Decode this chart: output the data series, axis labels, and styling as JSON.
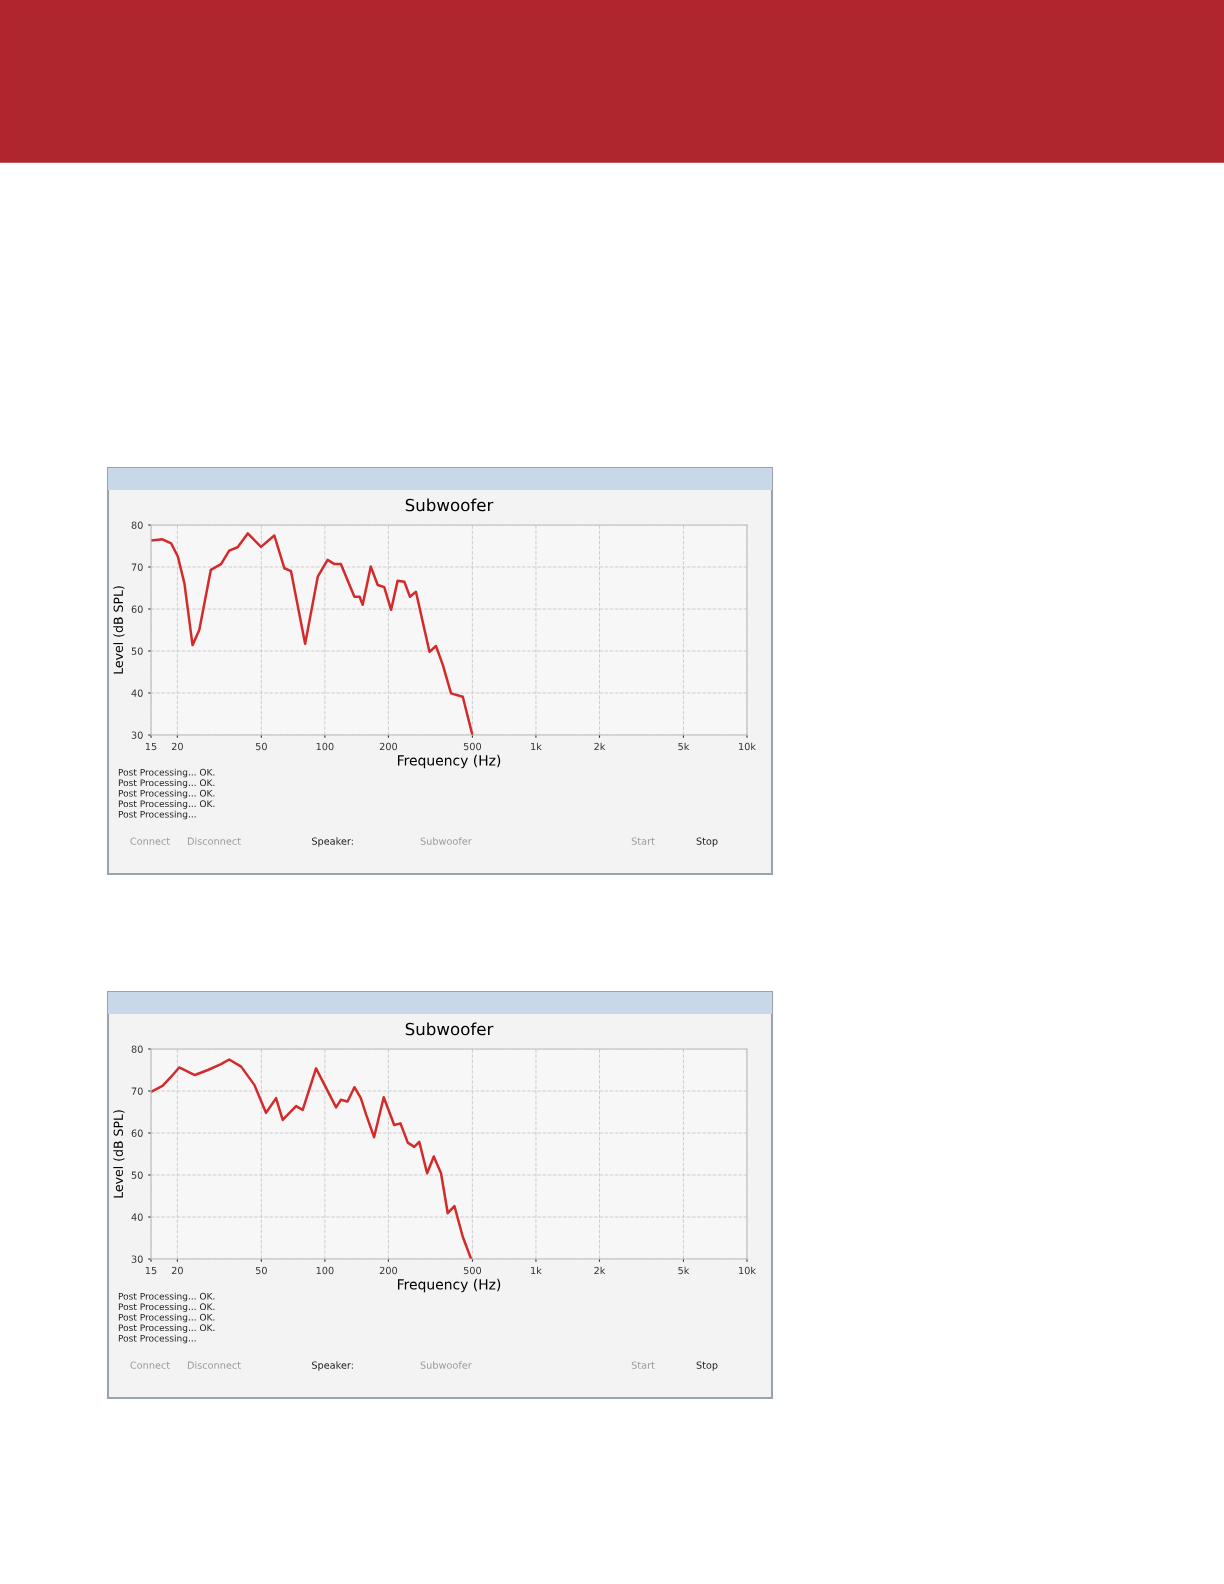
{
  "chart_data": [
    {
      "type": "line",
      "title": "Subwoofer",
      "xlabel": "Frequency (Hz)",
      "ylabel": "Level (dB SPL)",
      "log": "x",
      "grid": true,
      "line_style": "solid",
      "xlim": [
        15,
        10000
      ],
      "xticks": [
        15,
        20,
        50,
        100,
        200,
        500,
        {
          "value": 1000,
          "label": "1k"
        },
        {
          "value": 2000,
          "label": "2k"
        },
        {
          "value": 5000,
          "label": "5k"
        },
        {
          "value": 10000,
          "label": "10k"
        }
      ],
      "ylim": [
        30,
        80
      ],
      "yticks": [
        30,
        40,
        50,
        60,
        70,
        80
      ],
      "series": [
        {
          "color": "#d42a2a",
          "x": [
            15,
            17,
            18.7,
            20.1,
            21.6,
            23.6,
            25.4,
            28.8,
            32.2,
            35.2,
            38.6,
            43.1,
            49.8,
            57.6,
            64.3,
            69.1,
            80.6,
            92.5,
            103,
            111,
            119,
            138,
            146,
            151,
            165,
            178,
            191,
            206,
            221,
            238,
            253,
            270,
            313,
            336,
            362,
            396,
            450,
            500
          ],
          "values": [
            76.3,
            76.6,
            75.6,
            72.5,
            66.1,
            51.4,
            55,
            69.3,
            70.7,
            73.9,
            74.7,
            78,
            74.8,
            77.5,
            69.7,
            69,
            51.7,
            67.7,
            71.7,
            70.7,
            70.7,
            62.9,
            62.9,
            61,
            70.1,
            65.7,
            65.2,
            59.8,
            66.7,
            66.5,
            62.9,
            64.1,
            49.8,
            51.2,
            46.7,
            39.9,
            39.1,
            30
          ]
        }
      ],
      "annotations": [
        "Post Processing... OK.",
        "Post Processing... OK.",
        "Post Processing... OK.",
        "Post Processing... OK.",
        "Post Processing...",
        "Connect",
        "Disconnect",
        "Speaker:",
        "Subwoofer",
        "Start",
        "Stop"
      ]
    },
    {
      "type": "line",
      "title": "Subwoofer",
      "xlabel": "Frequency (Hz)",
      "ylabel": "Level (dB SPL)",
      "log": "x",
      "grid": true,
      "line_style": "solid",
      "xlim": [
        15,
        10000
      ],
      "xticks": [
        15,
        20,
        50,
        100,
        200,
        500,
        {
          "value": 1000,
          "label": "1k"
        },
        {
          "value": 2000,
          "label": "2k"
        },
        {
          "value": 5000,
          "label": "5k"
        },
        {
          "value": 10000,
          "label": "10k"
        }
      ],
      "ylim": [
        30,
        80
      ],
      "yticks": [
        30,
        40,
        50,
        60,
        70,
        80
      ],
      "series": [
        {
          "color": "#d42a2a",
          "x": [
            15,
            17,
            18.7,
            20.4,
            24.2,
            27.9,
            32.2,
            35.2,
            40.1,
            46.4,
            52.6,
            58.7,
            63.1,
            73,
            78.5,
            90.8,
            113,
            119,
            128,
            138,
            148,
            157,
            171,
            190,
            213,
            228,
            247,
            265,
            280,
            305,
            328,
            355,
            382,
            411,
            450,
            493
          ],
          "values": [
            69.8,
            71.2,
            73.4,
            75.6,
            73.8,
            75,
            76.4,
            77.5,
            75.8,
            71.4,
            64.8,
            68.3,
            63.1,
            66.4,
            65.5,
            75.4,
            66.1,
            67.9,
            67.5,
            70.9,
            68.3,
            64.3,
            59,
            68.5,
            61.9,
            62.3,
            57.7,
            56.7,
            57.9,
            50.4,
            54.4,
            50.4,
            40.9,
            42.6,
            35.3,
            30
          ]
        }
      ],
      "annotations": [
        "Post Processing... OK.",
        "Post Processing... OK.",
        "Post Processing... OK.",
        "Post Processing... OK.",
        "Post Processing...",
        "Connect",
        "Disconnect",
        "Speaker:",
        "Subwoofer",
        "Start",
        "Stop"
      ]
    }
  ]
}
